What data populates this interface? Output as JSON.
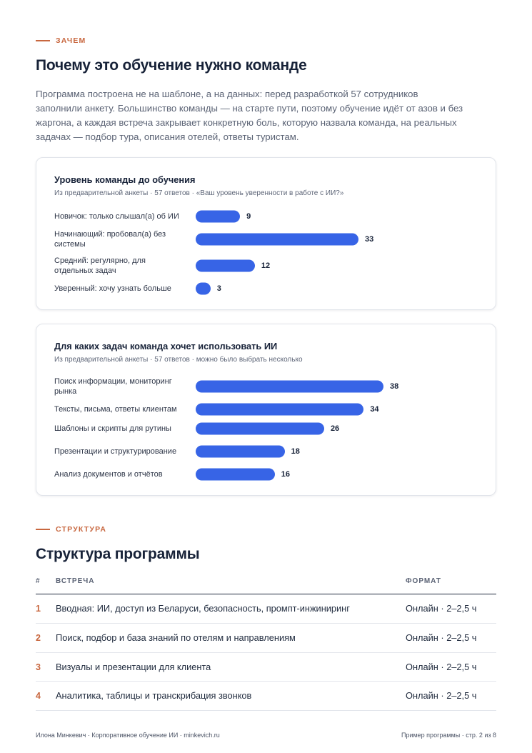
{
  "why": {
    "eyebrow": "ЗАЧЕМ",
    "title": "Почему это обучение нужно команде",
    "intro": "Программа построена не на шаблоне, а на данных: перед разработкой 57 сотрудников заполнили анкету. Большинство команды — на старте пути, поэтому обучение идёт от азов и без жаргона, а каждая встреча закрывает конкретную боль, которую назвала команда, на реальных задачах — подбор тура, описания отелей, ответы туристам."
  },
  "chart_data": [
    {
      "type": "bar",
      "orientation": "horizontal",
      "title": "Уровень команды до обучения",
      "subtitle": "Из предварительной анкеты · 57 ответов · «Ваш уровень уверенности в работе с ИИ?»",
      "categories": [
        "Новичок: только слышал(а) об ИИ",
        "Начинающий: пробовал(а) без системы",
        "Средний: регулярно, для отдельных задач",
        "Уверенный: хочу узнать больше"
      ],
      "values": [
        9,
        33,
        12,
        3
      ],
      "xlim": [
        0,
        33
      ],
      "bar_color": "#3764e6"
    },
    {
      "type": "bar",
      "orientation": "horizontal",
      "title": "Для каких задач команда хочет использовать ИИ",
      "subtitle": "Из предварительной анкеты · 57 ответов · можно было выбрать несколько",
      "categories": [
        "Поиск информации, мониторинг рынка",
        "Тексты, письма, ответы клиентам",
        "Шаблоны и скрипты для рутины",
        "Презентации и структурирование",
        "Анализ документов и отчётов"
      ],
      "values": [
        38,
        34,
        26,
        18,
        16
      ],
      "xlim": [
        0,
        38
      ],
      "bar_color": "#3764e6"
    }
  ],
  "structure": {
    "eyebrow": "СТРУКТУРА",
    "title": "Структура программы",
    "headers": {
      "num": "#",
      "topic": "ВСТРЕЧА",
      "format": "ФОРМАТ"
    },
    "rows": [
      {
        "num": "1",
        "topic": "Вводная: ИИ, доступ из Беларуси, безопасность, промпт-инжиниринг",
        "format": "Онлайн · 2–2,5 ч"
      },
      {
        "num": "2",
        "topic": "Поиск, подбор и база знаний по отелям и направлениям",
        "format": "Онлайн · 2–2,5 ч"
      },
      {
        "num": "3",
        "topic": "Визуалы и презентации для клиента",
        "format": "Онлайн · 2–2,5 ч"
      },
      {
        "num": "4",
        "topic": "Аналитика, таблицы и транскрибация звонков",
        "format": "Онлайн · 2–2,5 ч"
      }
    ]
  },
  "footer": {
    "left": "Илона Минкевич · Корпоративное обучение ИИ · minkevich.ru",
    "right": "Пример программы · стр. 2 из 8"
  },
  "colors": {
    "accent": "#c8673f",
    "bar": "#3764e6",
    "heading": "#172238"
  }
}
